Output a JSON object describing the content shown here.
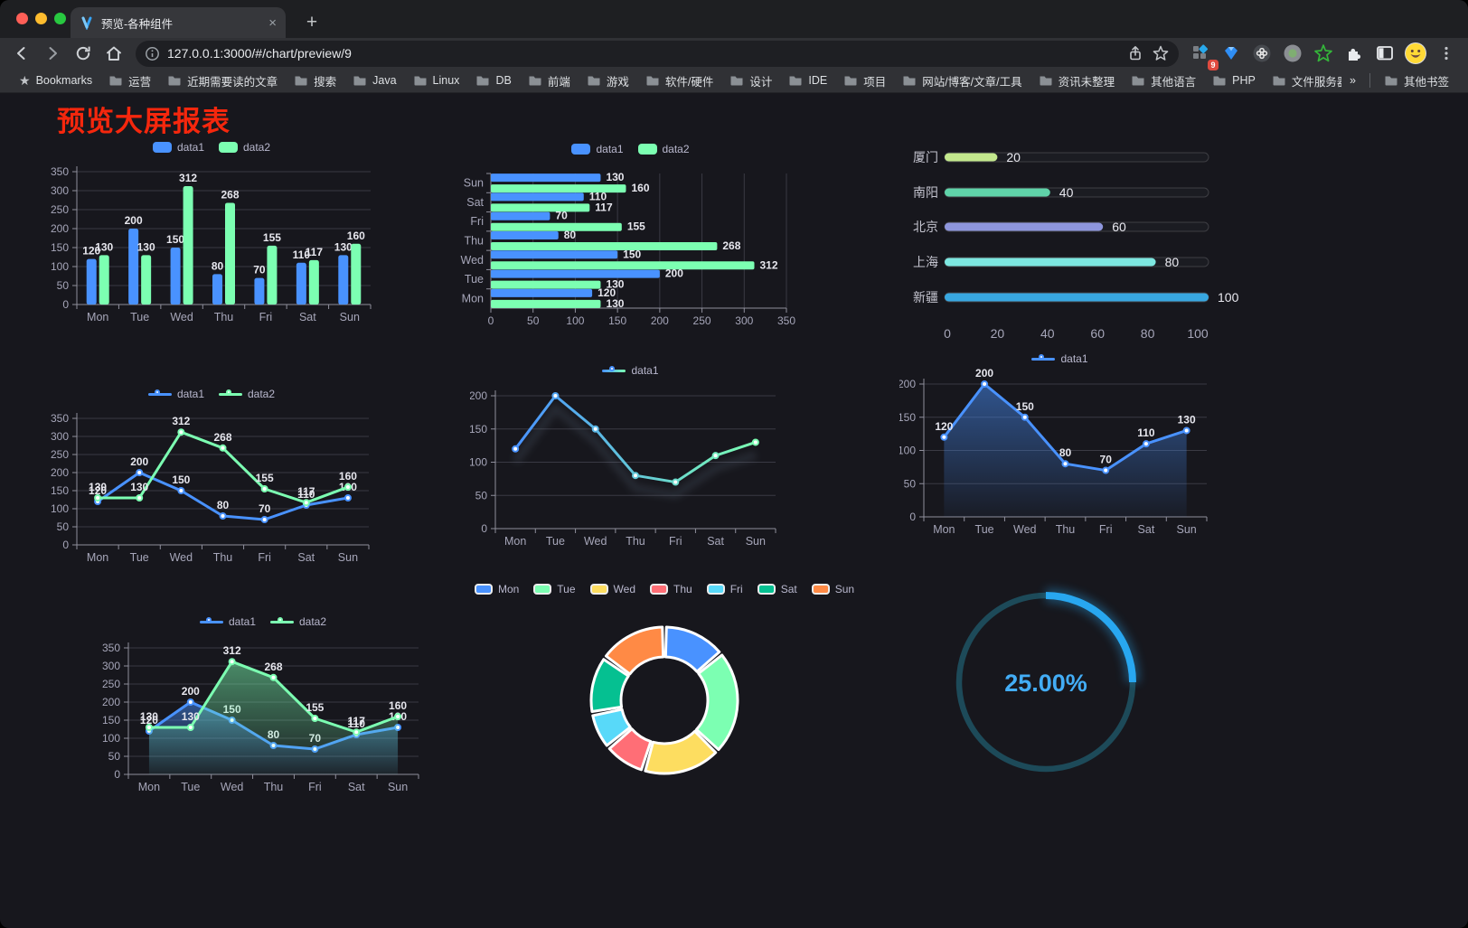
{
  "browser": {
    "traffic_lights": [
      "#ff5f57",
      "#febc2e",
      "#28c840"
    ],
    "tab": {
      "title": "预览-各种组件",
      "close_glyph": "×",
      "new_tab_glyph": "+"
    },
    "url": "127.0.0.1:3000/#/chart/preview/9",
    "extension_badge": "9",
    "menu_glyph": "⋮",
    "toolbar_icon_names": [
      "back-icon",
      "forward-icon",
      "reload-icon",
      "home-icon",
      "site-info-icon",
      "share-icon",
      "bookmark-star-icon",
      "extension-grid-icon",
      "gem-icon",
      "dark-circle-icon",
      "recorder-circle-icon",
      "green-star-icon",
      "puzzle-icon",
      "sidebar-icon",
      "profile-avatar-icon",
      "menu-kebab-icon"
    ],
    "bookmarks_bar": {
      "star_label": "Bookmarks",
      "folders": [
        "运营",
        "近期需要读的文章",
        "搜索",
        "Java",
        "Linux",
        "DB",
        "前端",
        "游戏",
        "软件/硬件",
        "设计",
        "IDE",
        "项目",
        "网站/博客/文章/工具",
        "资讯未整理",
        "其他语言",
        "PHP",
        "文件服务器"
      ],
      "overflow_glyph": "»",
      "other_bookmarks": "其他书签"
    }
  },
  "page": {
    "title": "预览大屏报表",
    "title_color": "#f5270d",
    "background": "#17171d"
  },
  "chart_data": [
    {
      "name": "grouped-bar",
      "type": "bar",
      "categories": [
        "Mon",
        "Tue",
        "Wed",
        "Thu",
        "Fri",
        "Sat",
        "Sun"
      ],
      "series": [
        {
          "name": "data1",
          "color": "#4992ff",
          "values": [
            120,
            200,
            150,
            80,
            70,
            110,
            130
          ]
        },
        {
          "name": "data2",
          "color": "#7cffb2",
          "values": [
            130,
            130,
            312,
            268,
            155,
            117,
            160
          ]
        }
      ],
      "ylim": [
        0,
        350
      ],
      "ytick": 50,
      "legend_position": "top",
      "grid": true,
      "show_labels": true
    },
    {
      "name": "horizontal-bar",
      "type": "barh",
      "categories": [
        "Mon",
        "Tue",
        "Wed",
        "Thu",
        "Fri",
        "Sat",
        "Sun"
      ],
      "series": [
        {
          "name": "data1",
          "color": "#4992ff",
          "values": [
            120,
            200,
            150,
            80,
            70,
            110,
            130
          ]
        },
        {
          "name": "data2",
          "color": "#7cffb2",
          "values": [
            130,
            130,
            312,
            268,
            155,
            117,
            160
          ]
        }
      ],
      "xlim": [
        0,
        350
      ],
      "xtick": 50,
      "legend_position": "top",
      "grid": true,
      "show_labels": true
    },
    {
      "name": "progress-list",
      "type": "progress",
      "items": [
        {
          "label": "厦门",
          "value": 20,
          "color": "#c3e88d"
        },
        {
          "label": "南阳",
          "value": 40,
          "color": "#5fd3a9"
        },
        {
          "label": "北京",
          "value": 60,
          "color": "#8e96dd"
        },
        {
          "label": "上海",
          "value": 80,
          "color": "#7de7e0"
        },
        {
          "label": "新疆",
          "value": 100,
          "color": "#38a7e0"
        }
      ],
      "xlim": [
        0,
        100
      ],
      "xticks": [
        0,
        20,
        40,
        60,
        80,
        100
      ]
    },
    {
      "name": "line-multi",
      "type": "line",
      "categories": [
        "Mon",
        "Tue",
        "Wed",
        "Thu",
        "Fri",
        "Sat",
        "Sun"
      ],
      "series": [
        {
          "name": "data1",
          "color": "#4992ff",
          "values": [
            120,
            200,
            150,
            80,
            70,
            110,
            130
          ]
        },
        {
          "name": "data2",
          "color": "#7cffb2",
          "values": [
            130,
            130,
            312,
            268,
            155,
            117,
            160
          ]
        }
      ],
      "ylim": [
        0,
        350
      ],
      "ytick": 50,
      "legend_position": "top",
      "grid": true,
      "show_labels": true
    },
    {
      "name": "line-gradient",
      "type": "line",
      "gradient": [
        "#4992ff",
        "#7cffb2"
      ],
      "categories": [
        "Mon",
        "Tue",
        "Wed",
        "Thu",
        "Fri",
        "Sat",
        "Sun"
      ],
      "series": [
        {
          "name": "data1",
          "color": "#4992ff",
          "values": [
            120,
            200,
            150,
            80,
            70,
            110,
            130
          ]
        }
      ],
      "ylim": [
        0,
        200
      ],
      "ytick": 50,
      "legend_position": "top",
      "grid": true,
      "show_labels": false
    },
    {
      "name": "area-single",
      "type": "area",
      "categories": [
        "Mon",
        "Tue",
        "Wed",
        "Thu",
        "Fri",
        "Sat",
        "Sun"
      ],
      "series": [
        {
          "name": "data1",
          "color": "#4992ff",
          "values": [
            120,
            200,
            150,
            80,
            70,
            110,
            130
          ]
        }
      ],
      "ylim": [
        0,
        200
      ],
      "ytick": 50,
      "legend_position": "top",
      "grid": true,
      "show_labels": true
    },
    {
      "name": "area-multi",
      "type": "area",
      "categories": [
        "Mon",
        "Tue",
        "Wed",
        "Thu",
        "Fri",
        "Sat",
        "Sun"
      ],
      "series": [
        {
          "name": "data1",
          "color": "#4992ff",
          "values": [
            120,
            200,
            150,
            80,
            70,
            110,
            130
          ]
        },
        {
          "name": "data2",
          "color": "#7cffb2",
          "values": [
            130,
            130,
            312,
            268,
            155,
            117,
            160
          ]
        }
      ],
      "ylim": [
        0,
        350
      ],
      "ytick": 50,
      "legend_position": "top",
      "grid": true,
      "show_labels": true
    },
    {
      "name": "donut",
      "type": "pie",
      "categories": [
        "Mon",
        "Tue",
        "Wed",
        "Thu",
        "Fri",
        "Sat",
        "Sun"
      ],
      "values": [
        120,
        200,
        150,
        80,
        70,
        110,
        130
      ],
      "colors": [
        "#4992ff",
        "#7cffb2",
        "#fddd60",
        "#ff6e76",
        "#58d9f9",
        "#05c091",
        "#ff8a45"
      ],
      "legend_position": "top",
      "inner_radius": 48,
      "outer_radius": 81
    },
    {
      "name": "gauge-progress",
      "type": "gauge",
      "value": 25,
      "display": "25.00%",
      "color": "#28a7f0",
      "track_color": "#1d4a59",
      "text_color": "#43adf6"
    }
  ]
}
